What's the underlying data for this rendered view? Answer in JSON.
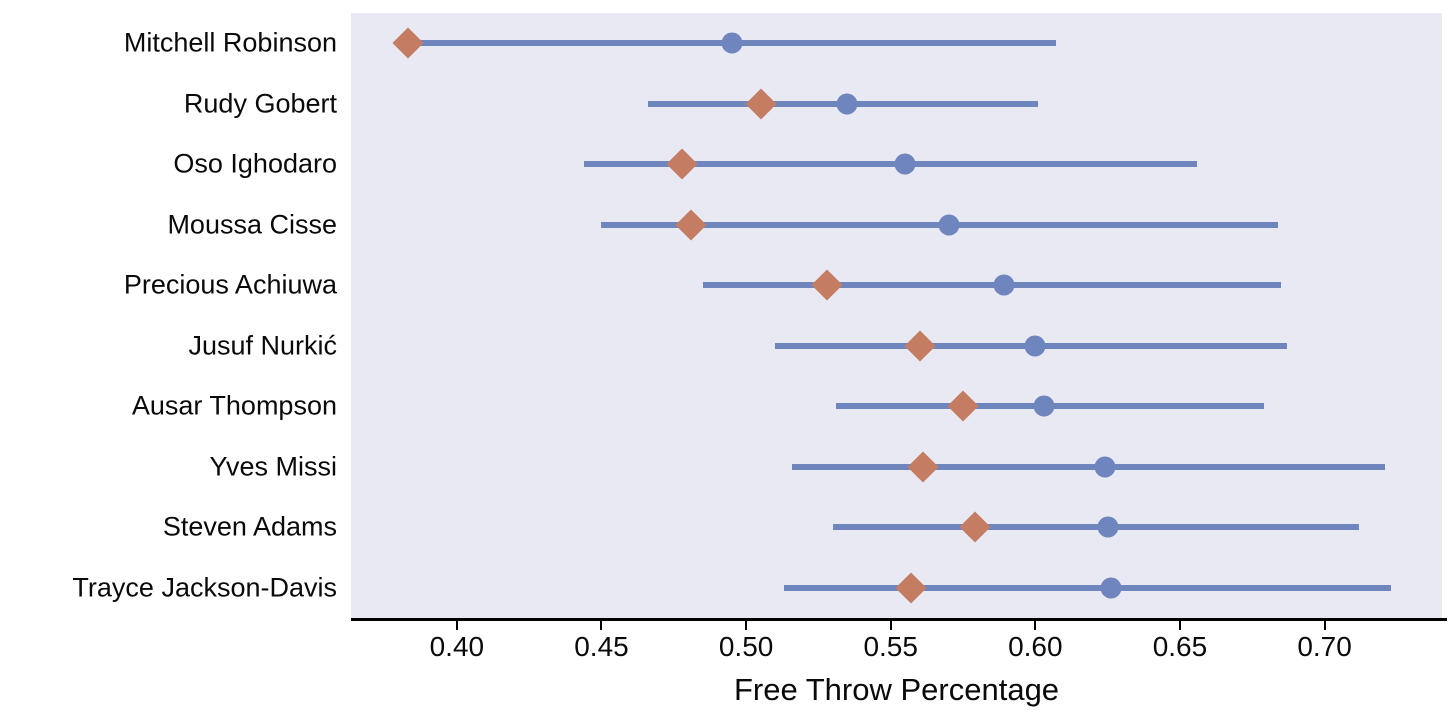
{
  "colors": {
    "plot_background": "#e8e9f2",
    "interval_and_mean_blue": "#6e85bd",
    "observed_diamond_orange": "#c47c62",
    "axis_line": "#000000",
    "text": "#0a0a0a"
  },
  "chart_data": {
    "type": "scatter",
    "subtype": "horizontal-interval-dot-plot",
    "title": "",
    "xlabel": "Free Throw Percentage",
    "ylabel": "",
    "xlim": [
      0.3634,
      0.7406
    ],
    "xticks": [
      0.4,
      0.45,
      0.5,
      0.55,
      0.6,
      0.65,
      0.7
    ],
    "grid": false,
    "legend_position": "none",
    "marker_legend": {
      "circle": "interval point estimate (blue circle)",
      "diamond": "observed value (orange diamond)",
      "line": "uncertainty interval (blue line)"
    },
    "rows": [
      {
        "player": "Mitchell Robinson",
        "observed": 0.383,
        "estimate": 0.495,
        "interval": [
          0.383,
          0.607
        ]
      },
      {
        "player": "Rudy Gobert",
        "observed": 0.505,
        "estimate": 0.535,
        "interval": [
          0.466,
          0.601
        ]
      },
      {
        "player": "Oso Ighodaro",
        "observed": 0.478,
        "estimate": 0.555,
        "interval": [
          0.444,
          0.656
        ]
      },
      {
        "player": "Moussa Cisse",
        "observed": 0.481,
        "estimate": 0.57,
        "interval": [
          0.45,
          0.684
        ]
      },
      {
        "player": "Precious Achiuwa",
        "observed": 0.528,
        "estimate": 0.589,
        "interval": [
          0.485,
          0.685
        ]
      },
      {
        "player": "Jusuf Nurkić",
        "observed": 0.56,
        "estimate": 0.6,
        "interval": [
          0.51,
          0.687
        ]
      },
      {
        "player": "Ausar Thompson",
        "observed": 0.575,
        "estimate": 0.603,
        "interval": [
          0.531,
          0.679
        ]
      },
      {
        "player": "Yves Missi",
        "observed": 0.561,
        "estimate": 0.624,
        "interval": [
          0.516,
          0.721
        ]
      },
      {
        "player": "Steven Adams",
        "observed": 0.579,
        "estimate": 0.625,
        "interval": [
          0.53,
          0.712
        ]
      },
      {
        "player": "Trayce Jackson-Davis",
        "observed": 0.557,
        "estimate": 0.626,
        "interval": [
          0.513,
          0.723
        ]
      }
    ]
  }
}
